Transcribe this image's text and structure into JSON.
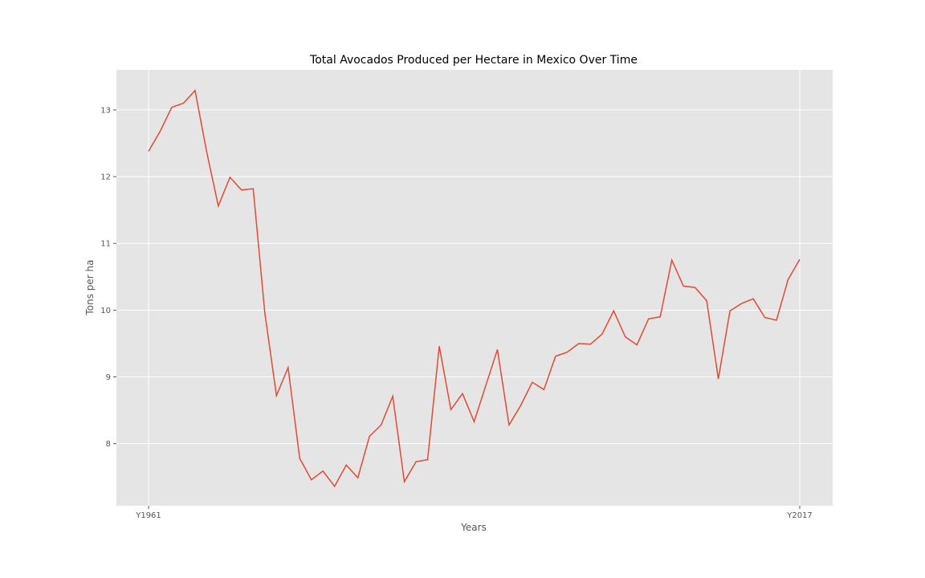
{
  "chart_data": {
    "type": "line",
    "title": "Total Avocados Produced per Hectare in Mexico Over Time",
    "xlabel": "Years",
    "ylabel": "Tons per ha",
    "x_tick_labels": [
      "Y1961",
      "Y2017"
    ],
    "y_ticks": [
      8,
      9,
      10,
      11,
      12,
      13
    ],
    "ylim": [
      7.07,
      13.6
    ],
    "grid": true,
    "background_color": "#e5e5e5",
    "grid_color": "#ffffff",
    "series": [
      {
        "color": "#e24a33",
        "x": [
          "Y1961",
          "Y1962",
          "Y1963",
          "Y1964",
          "Y1965",
          "Y1966",
          "Y1967",
          "Y1968",
          "Y1969",
          "Y1970",
          "Y1971",
          "Y1972",
          "Y1973",
          "Y1974",
          "Y1975",
          "Y1976",
          "Y1977",
          "Y1978",
          "Y1979",
          "Y1980",
          "Y1981",
          "Y1982",
          "Y1983",
          "Y1984",
          "Y1985",
          "Y1986",
          "Y1987",
          "Y1988",
          "Y1989",
          "Y1990",
          "Y1991",
          "Y1992",
          "Y1993",
          "Y1994",
          "Y1995",
          "Y1996",
          "Y1997",
          "Y1998",
          "Y1999",
          "Y2000",
          "Y2001",
          "Y2002",
          "Y2003",
          "Y2004",
          "Y2005",
          "Y2006",
          "Y2007",
          "Y2008",
          "Y2009",
          "Y2010",
          "Y2011",
          "Y2012",
          "Y2013",
          "Y2014",
          "Y2015",
          "Y2016",
          "Y2017"
        ],
        "values": [
          12.38,
          12.68,
          13.04,
          13.1,
          13.29,
          12.37,
          11.56,
          11.99,
          11.8,
          11.82,
          9.96,
          8.72,
          9.14,
          7.78,
          7.46,
          7.59,
          7.36,
          7.68,
          7.49,
          8.11,
          8.28,
          8.71,
          7.43,
          7.73,
          7.76,
          9.46,
          8.51,
          8.75,
          8.33,
          8.87,
          9.41,
          8.28,
          8.57,
          8.92,
          8.81,
          9.31,
          9.37,
          9.5,
          9.49,
          9.64,
          9.99,
          9.6,
          9.48,
          9.87,
          9.9,
          10.75,
          10.36,
          10.34,
          10.14,
          8.97,
          9.99,
          10.1,
          10.17,
          9.89,
          9.85,
          10.46,
          10.76
        ]
      }
    ]
  }
}
